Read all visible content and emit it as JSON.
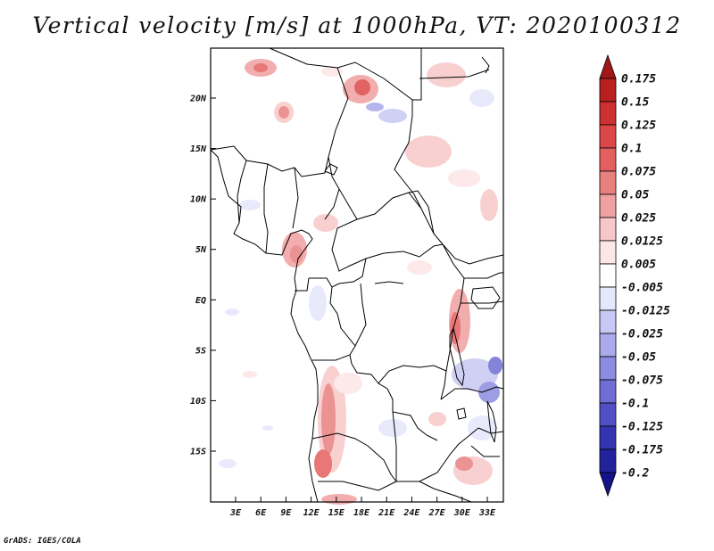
{
  "title": "Vertical velocity [m/s] at 1000hPa, VT: 2020100312",
  "footer": "GrADS: IGES/COLA",
  "map": {
    "lat_labels": [
      "20N",
      "15N",
      "10N",
      "5N",
      "EQ",
      "5S",
      "10S",
      "15S"
    ],
    "lon_labels": [
      "3E",
      "6E",
      "9E",
      "12E",
      "15E",
      "18E",
      "21E",
      "24E",
      "27E",
      "30E",
      "33E"
    ],
    "extent": {
      "lon_min": 0.2,
      "lon_max": 34.6,
      "lat_min": -19.5,
      "lat_max": 24.5
    }
  },
  "colorbar": {
    "labels": [
      "0.175",
      "0.15",
      "0.125",
      "0.1",
      "0.075",
      "0.05",
      "0.025",
      "0.0125",
      "0.005",
      "-0.005",
      "-0.0125",
      "-0.025",
      "-0.05",
      "-0.075",
      "-0.1",
      "-0.125",
      "-0.175",
      "-0.2"
    ],
    "colors": [
      "#a01818",
      "#b82020",
      "#cc3030",
      "#dc4848",
      "#e46060",
      "#e88080",
      "#f0a0a0",
      "#f7c8c8",
      "#fde6e6",
      "#ffffff",
      "#e6e6fc",
      "#c8c8f4",
      "#aaaaec",
      "#8c8ce0",
      "#6e6ed4",
      "#5050c4",
      "#3434b0",
      "#22229c",
      "#141488"
    ]
  }
}
